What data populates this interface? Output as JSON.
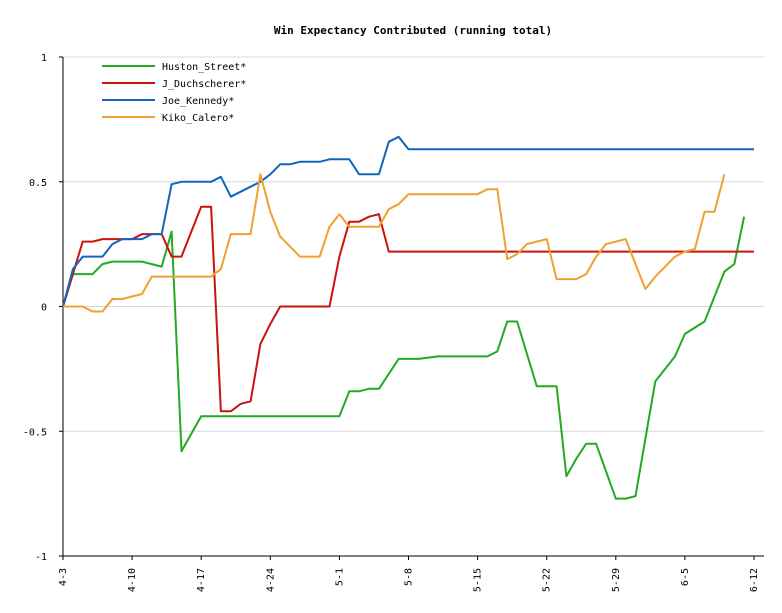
{
  "chart_data": {
    "type": "line",
    "title": "Win Expectancy Contributed (running total)",
    "xlabel": "",
    "ylabel": "",
    "ylim": [
      -1,
      1
    ],
    "yticks": [
      {
        "value": 1,
        "label": "1"
      },
      {
        "value": 0.5,
        "label": "0.5"
      },
      {
        "value": 0,
        "label": "0"
      },
      {
        "value": -0.5,
        "label": "-0.5"
      },
      {
        "value": -1,
        "label": "-1"
      }
    ],
    "grid": true,
    "legend_position": "top-left",
    "x_ticks": [
      "4-3",
      "4-10",
      "4-17",
      "4-24",
      "5-1",
      "5-8",
      "5-15",
      "5-22",
      "5-29",
      "6-5",
      "6-12"
    ],
    "x_tick_days": [
      0,
      7,
      14,
      21,
      28,
      35,
      42,
      49,
      56,
      63,
      70
    ],
    "xlim_days": [
      0,
      70
    ],
    "series": [
      {
        "name": "Huston_Street*",
        "color": "#22aa22",
        "points": [
          [
            0,
            0
          ],
          [
            1,
            0.13
          ],
          [
            2,
            0.13
          ],
          [
            3,
            0.13
          ],
          [
            4,
            0.17
          ],
          [
            5,
            0.18
          ],
          [
            6,
            0.18
          ],
          [
            7,
            0.18
          ],
          [
            8,
            0.18
          ],
          [
            9,
            0.17
          ],
          [
            10,
            0.16
          ],
          [
            11,
            0.3
          ],
          [
            12,
            -0.58
          ],
          [
            13,
            -0.51
          ],
          [
            14,
            -0.44
          ],
          [
            21,
            -0.44
          ],
          [
            28,
            -0.44
          ],
          [
            29,
            -0.34
          ],
          [
            30,
            -0.34
          ],
          [
            31,
            -0.33
          ],
          [
            32,
            -0.33
          ],
          [
            33,
            -0.27
          ],
          [
            34,
            -0.21
          ],
          [
            36,
            -0.21
          ],
          [
            38,
            -0.2
          ],
          [
            43,
            -0.2
          ],
          [
            44,
            -0.18
          ],
          [
            45,
            -0.06
          ],
          [
            46,
            -0.06
          ],
          [
            48,
            -0.32
          ],
          [
            49,
            -0.32
          ],
          [
            50,
            -0.32
          ],
          [
            51,
            -0.68
          ],
          [
            52,
            -0.61
          ],
          [
            53,
            -0.55
          ],
          [
            54,
            -0.55
          ],
          [
            56,
            -0.77
          ],
          [
            57,
            -0.77
          ],
          [
            58,
            -0.76
          ],
          [
            59,
            -0.53
          ],
          [
            60,
            -0.3
          ],
          [
            62,
            -0.2
          ],
          [
            63,
            -0.11
          ],
          [
            65,
            -0.06
          ],
          [
            67,
            0.14
          ],
          [
            68,
            0.17
          ],
          [
            69,
            0.36
          ]
        ]
      },
      {
        "name": "J_Duchscherer*",
        "color": "#cc1111",
        "points": [
          [
            0,
            0
          ],
          [
            1,
            0.13
          ],
          [
            2,
            0.26
          ],
          [
            3,
            0.26
          ],
          [
            4,
            0.27
          ],
          [
            5,
            0.27
          ],
          [
            6,
            0.27
          ],
          [
            7,
            0.27
          ],
          [
            8,
            0.29
          ],
          [
            9,
            0.29
          ],
          [
            10,
            0.29
          ],
          [
            11,
            0.2
          ],
          [
            12,
            0.2
          ],
          [
            13,
            0.3
          ],
          [
            14,
            0.4
          ],
          [
            15,
            0.4
          ],
          [
            16,
            -0.42
          ],
          [
            17,
            -0.42
          ],
          [
            18,
            -0.39
          ],
          [
            19,
            -0.38
          ],
          [
            20,
            -0.15
          ],
          [
            21,
            -0.07
          ],
          [
            22,
            0
          ],
          [
            24,
            0
          ],
          [
            27,
            0
          ],
          [
            28,
            0.2
          ],
          [
            29,
            0.34
          ],
          [
            30,
            0.34
          ],
          [
            31,
            0.36
          ],
          [
            32,
            0.37
          ],
          [
            33,
            0.22
          ],
          [
            34,
            0.22
          ],
          [
            70,
            0.22
          ]
        ]
      },
      {
        "name": "Joe_Kennedy*",
        "color": "#1166bb",
        "points": [
          [
            0,
            0
          ],
          [
            1,
            0.15
          ],
          [
            2,
            0.2
          ],
          [
            3,
            0.2
          ],
          [
            4,
            0.2
          ],
          [
            5,
            0.25
          ],
          [
            6,
            0.27
          ],
          [
            7,
            0.27
          ],
          [
            8,
            0.27
          ],
          [
            9,
            0.29
          ],
          [
            10,
            0.29
          ],
          [
            11,
            0.49
          ],
          [
            12,
            0.5
          ],
          [
            13,
            0.5
          ],
          [
            14,
            0.5
          ],
          [
            15,
            0.5
          ],
          [
            16,
            0.52
          ],
          [
            17,
            0.44
          ],
          [
            18,
            0.46
          ],
          [
            19,
            0.48
          ],
          [
            20,
            0.5
          ],
          [
            21,
            0.53
          ],
          [
            22,
            0.57
          ],
          [
            23,
            0.57
          ],
          [
            24,
            0.58
          ],
          [
            26,
            0.58
          ],
          [
            27,
            0.59
          ],
          [
            29,
            0.59
          ],
          [
            30,
            0.53
          ],
          [
            31,
            0.53
          ],
          [
            32,
            0.53
          ],
          [
            33,
            0.66
          ],
          [
            34,
            0.68
          ],
          [
            35,
            0.63
          ],
          [
            70,
            0.63
          ]
        ]
      },
      {
        "name": "Kiko_Calero*",
        "color": "#f0a030",
        "points": [
          [
            0,
            0
          ],
          [
            1,
            0
          ],
          [
            2,
            0
          ],
          [
            3,
            -0.02
          ],
          [
            4,
            -0.02
          ],
          [
            5,
            0.03
          ],
          [
            6,
            0.03
          ],
          [
            7,
            0.04
          ],
          [
            8,
            0.05
          ],
          [
            9,
            0.12
          ],
          [
            10,
            0.12
          ],
          [
            11,
            0.12
          ],
          [
            12,
            0.12
          ],
          [
            13,
            0.12
          ],
          [
            14,
            0.12
          ],
          [
            15,
            0.12
          ],
          [
            16,
            0.15
          ],
          [
            17,
            0.29
          ],
          [
            18,
            0.29
          ],
          [
            19,
            0.29
          ],
          [
            20,
            0.53
          ],
          [
            21,
            0.38
          ],
          [
            22,
            0.28
          ],
          [
            23,
            0.24
          ],
          [
            24,
            0.2
          ],
          [
            26,
            0.2
          ],
          [
            27,
            0.32
          ],
          [
            28,
            0.37
          ],
          [
            29,
            0.32
          ],
          [
            30,
            0.32
          ],
          [
            31,
            0.32
          ],
          [
            32,
            0.32
          ],
          [
            33,
            0.39
          ],
          [
            34,
            0.41
          ],
          [
            35,
            0.45
          ],
          [
            36,
            0.45
          ],
          [
            37,
            0.45
          ],
          [
            38,
            0.45
          ],
          [
            39,
            0.45
          ],
          [
            40,
            0.45
          ],
          [
            41,
            0.45
          ],
          [
            42,
            0.45
          ],
          [
            43,
            0.47
          ],
          [
            44,
            0.47
          ],
          [
            45,
            0.19
          ],
          [
            46,
            0.21
          ],
          [
            47,
            0.25
          ],
          [
            48,
            0.26
          ],
          [
            49,
            0.27
          ],
          [
            50,
            0.11
          ],
          [
            51,
            0.11
          ],
          [
            52,
            0.11
          ],
          [
            53,
            0.13
          ],
          [
            54,
            0.2
          ],
          [
            55,
            0.25
          ],
          [
            56,
            0.26
          ],
          [
            57,
            0.27
          ],
          [
            58,
            0.17
          ],
          [
            59,
            0.07
          ],
          [
            60,
            0.12
          ],
          [
            61,
            0.16
          ],
          [
            62,
            0.2
          ],
          [
            63,
            0.22
          ],
          [
            64,
            0.23
          ],
          [
            65,
            0.38
          ],
          [
            66,
            0.38
          ],
          [
            67,
            0.53
          ]
        ]
      }
    ]
  }
}
